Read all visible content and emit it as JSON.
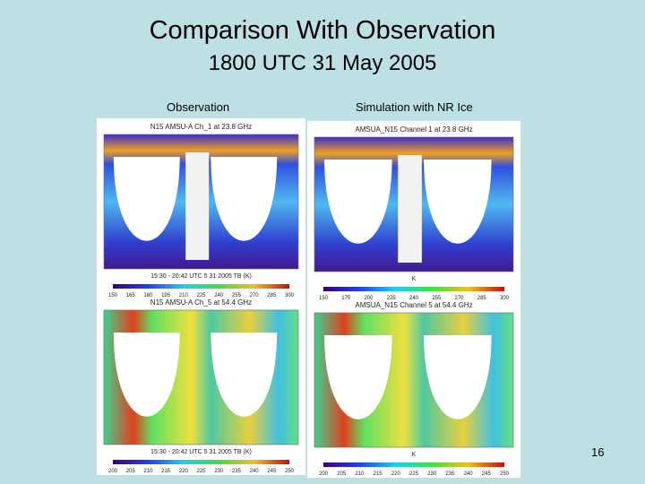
{
  "header": {
    "title": "Comparison With Observation",
    "subtitle": "1800 UTC 31 May 2005"
  },
  "columns": [
    "Observation",
    "Simulation with NR Ice"
  ],
  "panels": [
    {
      "title": "N15 AMSU-A Ch_1 at 23.8 GHz",
      "caption": "15:30 - 20:42 UTC 5 31 2005 TB (K)",
      "ticks": [
        "150",
        "165",
        "180",
        "195",
        "210",
        "225",
        "240",
        "255",
        "270",
        "285",
        "300"
      ]
    },
    {
      "title": "AMSUA_N15 Channel 1 at 23.8 GHz",
      "caption": "K",
      "ticks": [
        "150",
        "175",
        "200",
        "225",
        "240",
        "255",
        "270",
        "285",
        "300"
      ]
    },
    {
      "title": "N15 AMSU-A Ch_5 at 54.4 GHz",
      "caption": "15:30 - 20:42 UTC 5 31 2005 TB (K)",
      "ticks": [
        "200",
        "205",
        "210",
        "215",
        "220",
        "225",
        "230",
        "235",
        "240",
        "245",
        "250"
      ]
    },
    {
      "title": "AMSUA_N15 Channel 5 at 54.4 GHz",
      "caption": "K",
      "ticks": [
        "200",
        "205",
        "210",
        "215",
        "220",
        "225",
        "230",
        "235",
        "240",
        "245",
        "250"
      ]
    }
  ],
  "page_number": "16"
}
